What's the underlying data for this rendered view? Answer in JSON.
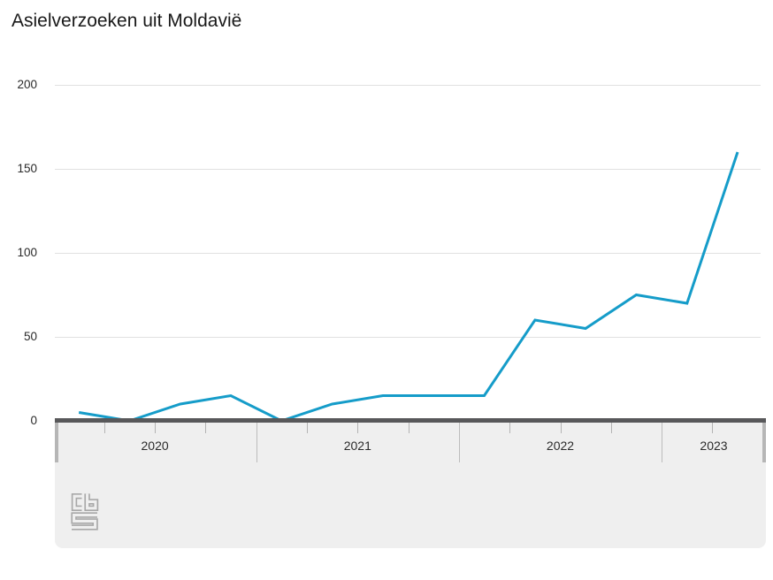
{
  "title": "Asielverzoeken uit Moldavië",
  "chart_data": {
    "type": "line",
    "title": "Asielverzoeken uit Moldavië",
    "categories": [
      "2020 K1",
      "2020 K2",
      "2020 K3",
      "2020 K4",
      "2021 K1",
      "2021 K2",
      "2021 K3",
      "2021 K4",
      "2022 K1",
      "2022 K2",
      "2022 K3",
      "2022 K4",
      "2023 K1",
      "2023 K2"
    ],
    "values": [
      5,
      0,
      10,
      15,
      0,
      10,
      15,
      15,
      15,
      60,
      55,
      75,
      70,
      160
    ],
    "x_year_labels": [
      "2020",
      "2021",
      "2022",
      "2023"
    ],
    "quarters_per_year": 4,
    "y_ticks": [
      0,
      50,
      100,
      150,
      200
    ],
    "ylim": [
      0,
      200
    ],
    "xlabel": "",
    "ylabel": "",
    "grid": true,
    "legend_position": "none",
    "line_color": "#159cc9"
  },
  "colors": {
    "line": "#159cc9",
    "grid": "#e1e1e1",
    "axis_bar": "#58585a",
    "axis_strip_bg": "#efefef",
    "tick_quarter": "#b3b3b3",
    "tick_year": "#bcbcbc",
    "drag_handle": "#b6b6b6",
    "text": "#2a2a2a",
    "logo": "#a8a8a8"
  },
  "logo": {
    "name": "cbs-logo",
    "letters": "cbs"
  }
}
